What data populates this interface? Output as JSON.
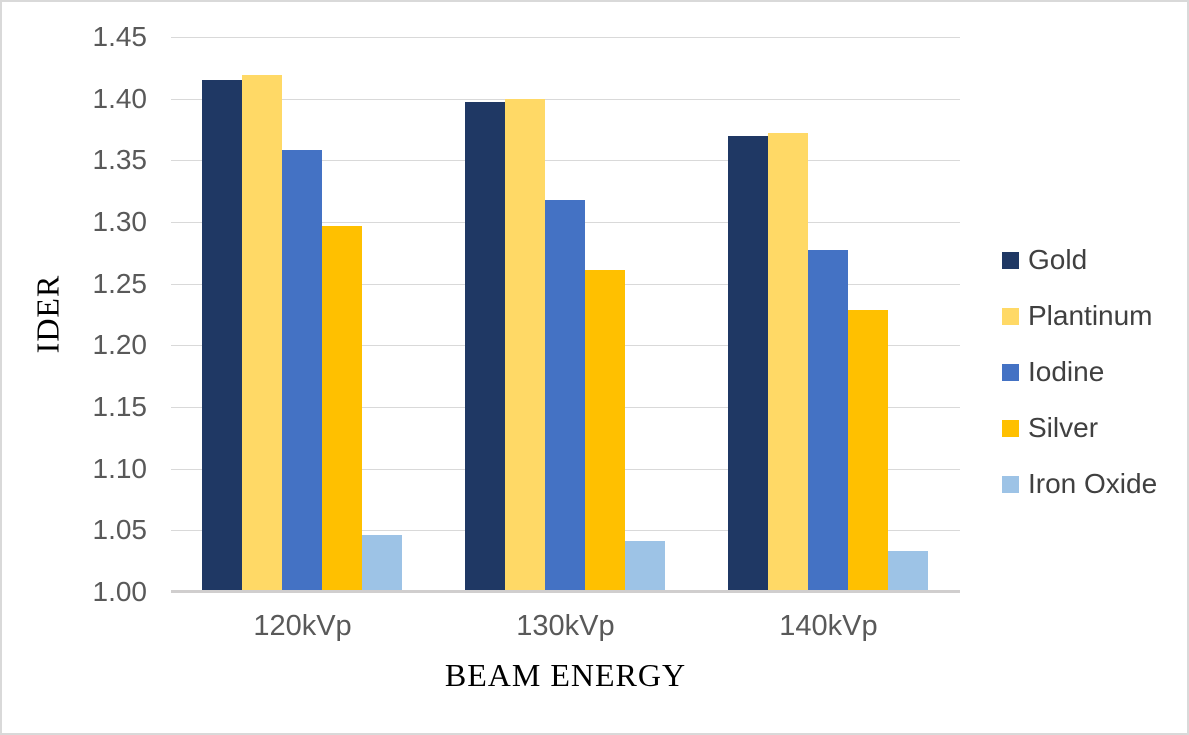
{
  "chart": {
    "y_axis_title": "IDER",
    "x_axis_title": "BEAM ENERGY"
  },
  "chart_data": {
    "type": "bar",
    "title": "",
    "categories": [
      "120kVp",
      "130kVp",
      "140kVp"
    ],
    "series": [
      {
        "name": "Gold",
        "color": "#1F3864",
        "values": [
          1.415,
          1.397,
          1.37
        ]
      },
      {
        "name": "Plantinum",
        "color": "#FFD966",
        "values": [
          1.419,
          1.4,
          1.372
        ]
      },
      {
        "name": "Iodine",
        "color": "#4472C4",
        "values": [
          1.358,
          1.318,
          1.277
        ]
      },
      {
        "name": "Silver",
        "color": "#FFC000",
        "values": [
          1.297,
          1.261,
          1.229
        ]
      },
      {
        "name": "Iron Oxide",
        "color": "#9DC3E6",
        "values": [
          1.046,
          1.041,
          1.033
        ]
      }
    ],
    "xlabel": "BEAM ENERGY",
    "ylabel": "IDER",
    "ylim": [
      1.0,
      1.45
    ],
    "ytick_step": 0.05,
    "ytick_labels": [
      "1.00",
      "1.05",
      "1.10",
      "1.15",
      "1.20",
      "1.25",
      "1.30",
      "1.35",
      "1.40",
      "1.45"
    ],
    "grid": true,
    "legend_position": "right"
  },
  "colors": {
    "background": "#FFFFFF",
    "frame_border": "#D9D9D9",
    "gridline": "#D9D9D9",
    "axis_line": "#D0CECE",
    "tick_label_text": "#595959",
    "axis_title_text": "#000000",
    "legend_text": "#404040"
  }
}
